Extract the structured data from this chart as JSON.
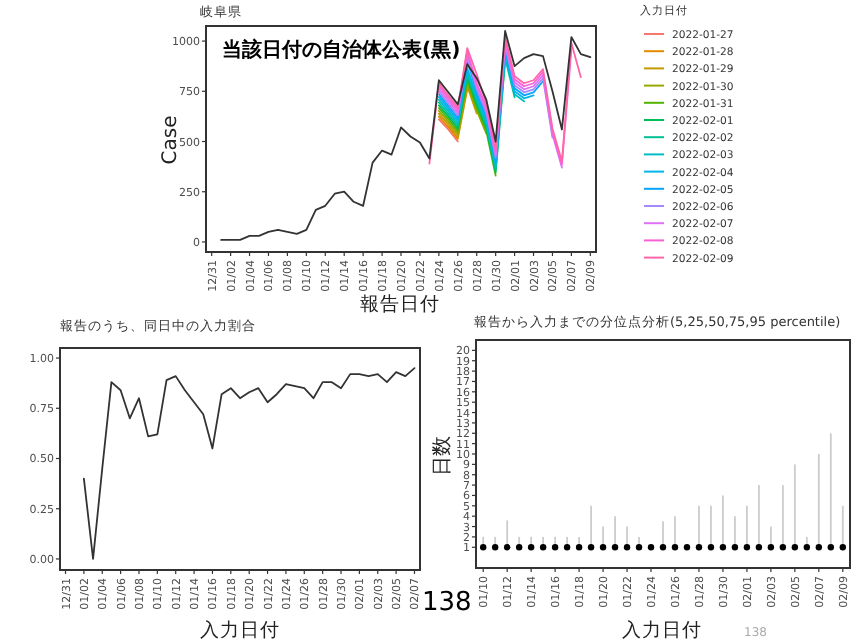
{
  "chart_data": [
    {
      "type": "line",
      "title": "岐阜県",
      "xlabel": "報告日付",
      "ylabel": "Case",
      "legend_title": "入力日付",
      "legend": "right",
      "annotations": [
        "当該日付の自治体公表(黒)"
      ],
      "categories": [
        "12/31",
        null,
        "01/02",
        null,
        "01/04",
        null,
        "01/06",
        null,
        "01/08",
        null,
        "01/10",
        null,
        "01/12",
        null,
        "01/14",
        null,
        "01/16",
        null,
        "01/18",
        null,
        "01/20",
        null,
        "01/22",
        null,
        "01/24",
        null,
        "01/26",
        null,
        "01/28",
        null,
        "01/30",
        null,
        "02/01",
        null,
        "02/03",
        null,
        "02/05",
        null,
        "02/07",
        null,
        "02/09"
      ],
      "ylim": [
        -50,
        1075
      ],
      "yticks": [
        0,
        250,
        500,
        750,
        1000
      ],
      "series": [
        {
          "name": "2022-01-27",
          "color": "#f8766d",
          "values": [
            null,
            null,
            null,
            null,
            null,
            null,
            null,
            null,
            null,
            null,
            null,
            null,
            null,
            null,
            null,
            null,
            null,
            null,
            null,
            null,
            null,
            null,
            null,
            null,
            610,
            560,
            500,
            null,
            null,
            null,
            null,
            null,
            null,
            null,
            null,
            null,
            null,
            null,
            null,
            null,
            null
          ]
        },
        {
          "name": "2022-01-28",
          "color": "#e38900",
          "values": [
            null,
            null,
            null,
            null,
            null,
            null,
            null,
            null,
            null,
            null,
            null,
            null,
            null,
            null,
            null,
            null,
            null,
            null,
            null,
            null,
            null,
            null,
            null,
            null,
            624,
            573,
            513,
            760,
            null,
            null,
            null,
            null,
            null,
            null,
            null,
            null,
            null,
            null,
            null,
            null,
            null
          ]
        },
        {
          "name": "2022-01-29",
          "color": "#c49a00",
          "values": [
            null,
            null,
            null,
            null,
            null,
            null,
            null,
            null,
            null,
            null,
            null,
            null,
            null,
            null,
            null,
            null,
            null,
            null,
            null,
            null,
            null,
            null,
            null,
            null,
            638,
            586,
            526,
            775,
            640,
            null,
            null,
            null,
            null,
            null,
            null,
            null,
            null,
            null,
            null,
            null,
            null
          ]
        },
        {
          "name": "2022-01-30",
          "color": "#99a800",
          "values": [
            null,
            null,
            null,
            null,
            null,
            null,
            null,
            null,
            null,
            null,
            null,
            null,
            null,
            null,
            null,
            null,
            null,
            null,
            null,
            null,
            null,
            null,
            null,
            null,
            652,
            599,
            539,
            790,
            655,
            540,
            null,
            null,
            null,
            null,
            null,
            null,
            null,
            null,
            null,
            null,
            null
          ]
        },
        {
          "name": "2022-01-31",
          "color": "#53b400",
          "values": [
            null,
            null,
            null,
            null,
            null,
            null,
            null,
            null,
            null,
            null,
            null,
            null,
            null,
            null,
            null,
            null,
            null,
            null,
            null,
            null,
            null,
            null,
            null,
            null,
            666,
            612,
            552,
            805,
            670,
            555,
            330,
            null,
            null,
            null,
            null,
            null,
            null,
            null,
            null,
            null,
            null
          ]
        },
        {
          "name": "2022-02-01",
          "color": "#00bc56",
          "values": [
            null,
            null,
            null,
            null,
            null,
            null,
            null,
            null,
            null,
            null,
            null,
            null,
            null,
            null,
            null,
            null,
            null,
            null,
            null,
            null,
            null,
            null,
            null,
            null,
            680,
            625,
            565,
            820,
            685,
            570,
            345,
            900,
            null,
            null,
            null,
            null,
            null,
            null,
            null,
            null,
            null
          ]
        },
        {
          "name": "2022-02-02",
          "color": "#00c094",
          "values": [
            null,
            null,
            null,
            null,
            null,
            null,
            null,
            null,
            null,
            null,
            null,
            null,
            null,
            null,
            null,
            null,
            null,
            null,
            null,
            null,
            null,
            null,
            null,
            null,
            694,
            638,
            578,
            835,
            700,
            585,
            360,
            915,
            720,
            null,
            null,
            null,
            null,
            null,
            null,
            null,
            null
          ]
        },
        {
          "name": "2022-02-03",
          "color": "#00bfc4",
          "values": [
            null,
            null,
            null,
            null,
            null,
            null,
            null,
            null,
            null,
            null,
            null,
            null,
            null,
            null,
            null,
            null,
            null,
            null,
            null,
            null,
            null,
            null,
            null,
            null,
            708,
            651,
            591,
            850,
            715,
            600,
            375,
            930,
            735,
            700,
            null,
            null,
            null,
            null,
            null,
            null,
            null
          ]
        },
        {
          "name": "2022-02-04",
          "color": "#00b6eb",
          "values": [
            null,
            null,
            null,
            null,
            null,
            null,
            null,
            null,
            null,
            null,
            null,
            null,
            null,
            null,
            null,
            null,
            null,
            null,
            null,
            null,
            null,
            null,
            null,
            null,
            722,
            664,
            604,
            865,
            730,
            615,
            390,
            945,
            750,
            715,
            730,
            null,
            null,
            null,
            null,
            null,
            null
          ]
        },
        {
          "name": "2022-02-05",
          "color": "#06a4ff",
          "values": [
            null,
            null,
            null,
            null,
            null,
            null,
            null,
            null,
            null,
            null,
            null,
            null,
            null,
            null,
            null,
            null,
            null,
            null,
            null,
            null,
            null,
            null,
            null,
            null,
            736,
            677,
            617,
            905,
            745,
            630,
            405,
            960,
            765,
            730,
            745,
            800,
            null,
            null,
            null,
            null,
            null
          ]
        },
        {
          "name": "2022-02-06",
          "color": "#a58aff",
          "values": [
            null,
            null,
            null,
            null,
            null,
            null,
            null,
            null,
            null,
            null,
            null,
            null,
            null,
            null,
            null,
            null,
            null,
            null,
            null,
            null,
            null,
            null,
            null,
            null,
            750,
            690,
            630,
            920,
            760,
            645,
            420,
            975,
            780,
            745,
            760,
            815,
            520,
            null,
            null,
            null,
            null
          ]
        },
        {
          "name": "2022-02-07",
          "color": "#df70f8",
          "values": [
            null,
            null,
            null,
            null,
            null,
            null,
            null,
            null,
            null,
            null,
            null,
            null,
            null,
            null,
            null,
            null,
            null,
            null,
            null,
            null,
            null,
            null,
            null,
            null,
            764,
            703,
            643,
            935,
            775,
            660,
            435,
            990,
            795,
            760,
            775,
            830,
            535,
            370,
            null,
            null,
            null
          ]
        },
        {
          "name": "2022-02-08",
          "color": "#fb61d7",
          "values": [
            null,
            null,
            null,
            null,
            null,
            null,
            null,
            null,
            null,
            null,
            null,
            null,
            null,
            null,
            null,
            null,
            null,
            null,
            null,
            null,
            null,
            null,
            null,
            null,
            778,
            716,
            656,
            950,
            790,
            675,
            450,
            1005,
            810,
            775,
            790,
            845,
            550,
            385,
            960,
            null,
            null
          ]
        },
        {
          "name": "2022-02-09",
          "color": "#ff66a8",
          "values": [
            null,
            null,
            null,
            null,
            null,
            null,
            null,
            null,
            null,
            null,
            null,
            null,
            null,
            null,
            null,
            null,
            null,
            null,
            null,
            null,
            null,
            null,
            null,
            390,
            792,
            729,
            669,
            965,
            835,
            690,
            465,
            1020,
            825,
            790,
            805,
            860,
            565,
            400,
            990,
            820,
            null
          ]
        },
        {
          "color": "#333333",
          "values": [
            null,
            10,
            10,
            10,
            30,
            30,
            50,
            60,
            50,
            40,
            60,
            160,
            180,
            240,
            250,
            200,
            180,
            395,
            455,
            435,
            570,
            525,
            495,
            415,
            805,
            745,
            685,
            885,
            815,
            710,
            500,
            1050,
            875,
            915,
            935,
            925,
            750,
            560,
            1020,
            935,
            920
          ]
        }
      ]
    },
    {
      "type": "line",
      "title": "報告のうち、同日中の入力割合",
      "xlabel": "入力日付",
      "annotations": [
        "138"
      ],
      "categories": [
        "12/31",
        null,
        "01/02",
        null,
        "01/04",
        null,
        "01/06",
        null,
        "01/08",
        null,
        "01/10",
        null,
        "01/12",
        null,
        "01/14",
        null,
        "01/16",
        null,
        "01/18",
        null,
        "01/20",
        null,
        "01/22",
        null,
        "01/24",
        null,
        "01/26",
        null,
        "01/28",
        null,
        "01/30",
        null,
        "02/01",
        null,
        "02/03",
        null,
        "02/05",
        null,
        "02/07"
      ],
      "ylim": [
        -0.055,
        1.05
      ],
      "yticks": [
        {
          "value": 0,
          "label": "0.00"
        },
        {
          "value": 0.25,
          "label": "0.25"
        },
        {
          "value": 0.5,
          "label": "0.50"
        },
        {
          "value": 0.75,
          "label": "0.75"
        },
        {
          "value": 1,
          "label": "1.00"
        }
      ],
      "color": "#333333",
      "values": [
        null,
        null,
        0.4,
        0.0,
        0.45,
        0.88,
        0.84,
        0.7,
        0.8,
        0.61,
        0.62,
        0.89,
        0.91,
        0.84,
        0.78,
        0.72,
        0.55,
        0.82,
        0.85,
        0.8,
        0.83,
        0.85,
        0.78,
        0.82,
        0.87,
        0.86,
        0.85,
        0.8,
        0.88,
        0.88,
        0.85,
        0.92,
        0.92,
        0.91,
        0.92,
        0.88,
        0.93,
        0.91,
        0.95
      ]
    },
    {
      "type": "scatter",
      "title": "報告から入力までの分位点分析(5,25,50,75,95 percentile)",
      "xlabel": "入力日付",
      "ylabel": "日数",
      "annotations": [
        "138"
      ],
      "categories": [
        "01/10",
        null,
        "01/12",
        null,
        "01/14",
        null,
        "01/16",
        null,
        "01/18",
        null,
        "01/20",
        null,
        "01/22",
        null,
        "01/24",
        null,
        "01/26",
        null,
        "01/28",
        null,
        "01/30",
        null,
        "02/01",
        null,
        "02/03",
        null,
        "02/05",
        null,
        "02/07",
        null,
        "02/09"
      ],
      "ylim": [
        -1,
        21
      ],
      "yticks": [
        1,
        2,
        3,
        4,
        5,
        6,
        7,
        8,
        9,
        10,
        11,
        12,
        13,
        14,
        15,
        16,
        17,
        18,
        19,
        20
      ],
      "color": "#000000",
      "values": [
        1,
        1,
        1,
        1,
        1,
        1,
        1,
        1,
        1,
        1,
        1,
        1,
        1,
        1,
        1,
        1,
        1,
        1,
        1,
        1,
        1,
        1,
        1,
        1,
        1,
        1,
        1,
        1,
        1,
        1,
        1
      ],
      "errors": [
        [
          1,
          2
        ],
        [
          1,
          2
        ],
        [
          1,
          3.6
        ],
        [
          1,
          2
        ],
        [
          1,
          2
        ],
        [
          1,
          2
        ],
        [
          1,
          2
        ],
        [
          1,
          2
        ],
        [
          1,
          2
        ],
        [
          1,
          5
        ],
        [
          1,
          3
        ],
        [
          1,
          4
        ],
        [
          1,
          3
        ],
        [
          1,
          2
        ],
        [
          1,
          1
        ],
        [
          1,
          3.5
        ],
        [
          1,
          4
        ],
        [
          1,
          1
        ],
        [
          1,
          5
        ],
        [
          1,
          5
        ],
        [
          1,
          6
        ],
        [
          1,
          4
        ],
        [
          1,
          5
        ],
        [
          1,
          7
        ],
        [
          1,
          3
        ],
        [
          1,
          7
        ],
        [
          1,
          9
        ],
        [
          1,
          2
        ],
        [
          1,
          10
        ],
        [
          1,
          12
        ],
        [
          1,
          5
        ]
      ]
    }
  ]
}
